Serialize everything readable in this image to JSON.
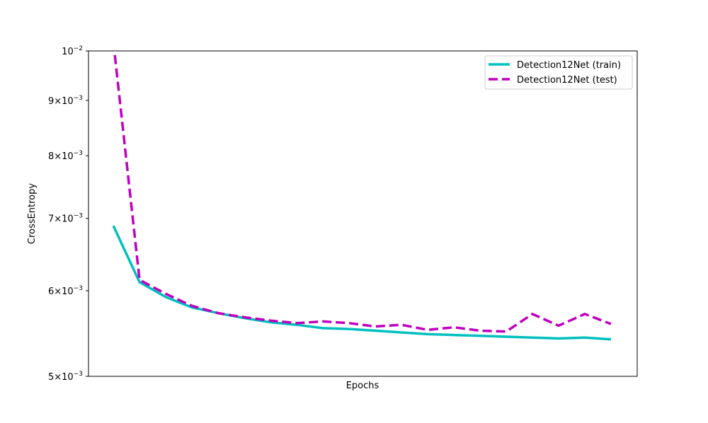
{
  "chart_data": {
    "type": "line",
    "title": "",
    "xlabel": "Epochs",
    "ylabel": "CrossEntropy",
    "yscale": "log",
    "ylim": [
      0.005,
      0.01
    ],
    "x": [
      1,
      2,
      3,
      4,
      5,
      6,
      7,
      8,
      9,
      10,
      11,
      12,
      13,
      14,
      15,
      16,
      17,
      18,
      19,
      20
    ],
    "xlim": [
      0.05,
      21.0
    ],
    "x_ticks_shown": false,
    "y_ticks": [
      {
        "value": 0.005,
        "mantissa": "5",
        "base": "10",
        "exponent": "−3"
      },
      {
        "value": 0.006,
        "mantissa": "6",
        "base": "10",
        "exponent": "−3"
      },
      {
        "value": 0.007,
        "mantissa": "7",
        "base": "10",
        "exponent": "−3"
      },
      {
        "value": 0.008,
        "mantissa": "8",
        "base": "10",
        "exponent": "−3"
      },
      {
        "value": 0.009,
        "mantissa": "9",
        "base": "10",
        "exponent": "−3"
      },
      {
        "value": 0.01,
        "mantissa": "",
        "base": "10",
        "exponent": "−2"
      }
    ],
    "grid": false,
    "legend_position": "top-right",
    "series": [
      {
        "name": "Detection12Net (train)",
        "color": "#00bfbf",
        "style": "solid",
        "values": [
          0.00689,
          0.00611,
          0.00592,
          0.00579,
          0.00572,
          0.00566,
          0.00561,
          0.00558,
          0.00554,
          0.00553,
          0.00551,
          0.00549,
          0.00547,
          0.00546,
          0.00545,
          0.00544,
          0.00543,
          0.00542,
          0.00543,
          0.00541
        ]
      },
      {
        "name": "Detection12Net (test)",
        "color": "#bf00bf",
        "style": "dashed",
        "values": [
          0.0102,
          0.00614,
          0.00596,
          0.00581,
          0.00572,
          0.00567,
          0.00563,
          0.0056,
          0.00562,
          0.0056,
          0.00556,
          0.00558,
          0.00552,
          0.00555,
          0.00551,
          0.0055,
          0.00571,
          0.00557,
          0.00571,
          0.00559
        ]
      }
    ]
  }
}
